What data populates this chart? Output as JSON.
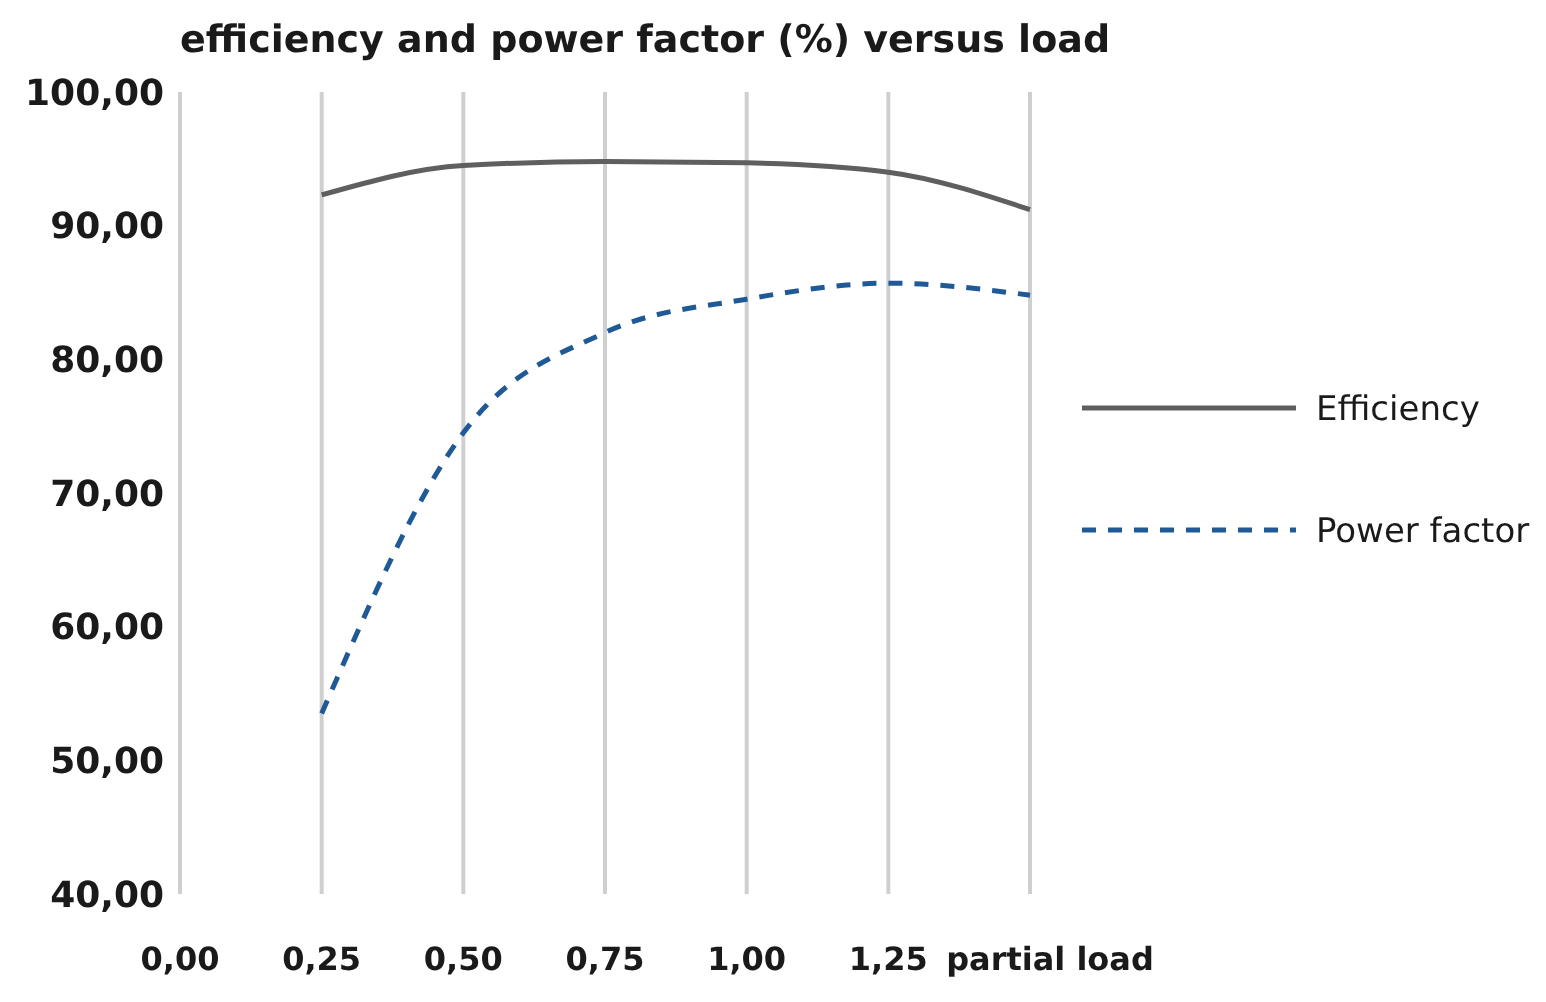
{
  "chart_data": {
    "type": "line",
    "title": "efficiency and power factor (%) versus load",
    "xlabel": "partial load",
    "x": [
      0.25,
      0.5,
      0.75,
      1.0,
      1.25,
      1.5
    ],
    "series": [
      {
        "name": "Efficiency",
        "color": "#5f5f5f",
        "values": [
          92.3,
          94.5,
          94.8,
          94.7,
          94.0,
          91.2
        ],
        "line_style": "solid"
      },
      {
        "name": "Power factor",
        "color": "#1f5a96",
        "values": [
          53.5,
          74.5,
          82.0,
          84.5,
          85.7,
          84.8
        ],
        "line_style": "dashed"
      }
    ],
    "xlim": [
      0,
      1.5
    ],
    "ylim": [
      40,
      100
    ],
    "xticks": [
      {
        "value": 0,
        "label": "0,00"
      },
      {
        "value": 0.25,
        "label": "0,25"
      },
      {
        "value": 0.5,
        "label": "0,50"
      },
      {
        "value": 0.75,
        "label": "0,75"
      },
      {
        "value": 1.0,
        "label": "1,00"
      },
      {
        "value": 1.25,
        "label": "1,25"
      },
      {
        "value": 1.5,
        "label": null
      }
    ],
    "yticks": [
      {
        "value": 40,
        "label": "40,00"
      },
      {
        "value": 50,
        "label": "50,00"
      },
      {
        "value": 60,
        "label": "60,00"
      },
      {
        "value": 70,
        "label": "70,00"
      },
      {
        "value": 80,
        "label": "80,00"
      },
      {
        "value": 90,
        "label": "90,00"
      },
      {
        "value": 100,
        "label": "100,00"
      }
    ],
    "grid": "x",
    "legend": "right",
    "marker": "none"
  }
}
